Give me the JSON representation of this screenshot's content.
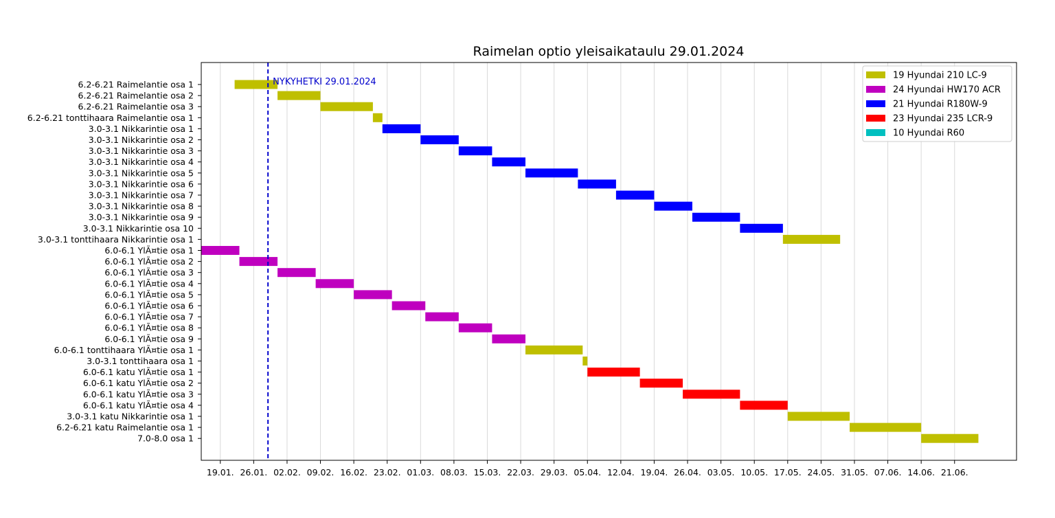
{
  "chart_data": {
    "type": "gantt",
    "title": "Raimelan optio yleisaikataulu 29.01.2024",
    "x_axis": {
      "type": "date",
      "xlim": [
        "2024-01-15",
        "2024-07-04"
      ],
      "tick_dates": [
        "2024-01-19",
        "2024-01-26",
        "2024-02-02",
        "2024-02-09",
        "2024-02-16",
        "2024-02-23",
        "2024-03-01",
        "2024-03-08",
        "2024-03-15",
        "2024-03-22",
        "2024-03-29",
        "2024-04-05",
        "2024-04-12",
        "2024-04-19",
        "2024-04-26",
        "2024-05-03",
        "2024-05-10",
        "2024-05-17",
        "2024-05-24",
        "2024-05-31",
        "2024-06-07",
        "2024-06-14",
        "2024-06-21"
      ],
      "tick_labels": [
        "19.01.",
        "26.01.",
        "02.02.",
        "09.02.",
        "16.02.",
        "23.02.",
        "01.03.",
        "08.03.",
        "15.03.",
        "22.03.",
        "29.03.",
        "05.04.",
        "12.04.",
        "19.04.",
        "26.04.",
        "03.05.",
        "10.05.",
        "17.05.",
        "24.05.",
        "31.05.",
        "07.06.",
        "14.06.",
        "21.06."
      ],
      "grid": true
    },
    "marker": {
      "date": "2024-01-29",
      "label": "NYKYHETKI 29.01.2024",
      "color": "#0000cc",
      "style": "dashed"
    },
    "legend": {
      "position": "top-right",
      "items": [
        {
          "name": "19 Hyundai 210 LC-9",
          "color": "#bfbf00"
        },
        {
          "name": "24 Hyundai HW170 ACR",
          "color": "#bf00bf"
        },
        {
          "name": "21 Hyundai R180W-9",
          "color": "#0000ff"
        },
        {
          "name": "23 Hyundai 235 LCR-9",
          "color": "#ff0000"
        },
        {
          "name": "10 Hyundai R60",
          "color": "#00bfbf"
        }
      ]
    },
    "tasks": [
      {
        "label": "6.2-6.21 Raimelantie osa 1",
        "start": "2024-01-22",
        "end": "2024-01-31",
        "machine": "19 Hyundai 210 LC-9"
      },
      {
        "label": "6.2-6.21 Raimelantie osa 2",
        "start": "2024-01-31",
        "end": "2024-02-09",
        "machine": "19 Hyundai 210 LC-9"
      },
      {
        "label": "6.2-6.21 Raimelantie osa 3",
        "start": "2024-02-09",
        "end": "2024-02-20",
        "machine": "19 Hyundai 210 LC-9"
      },
      {
        "label": "6.2-6.21 tonttihaara Raimelantie osa 1",
        "start": "2024-02-20",
        "end": "2024-02-22",
        "machine": "19 Hyundai 210 LC-9"
      },
      {
        "label": "3.0-3.1 Nikkarintie osa 1",
        "start": "2024-02-22",
        "end": "2024-03-01",
        "machine": "21 Hyundai R180W-9"
      },
      {
        "label": "3.0-3.1 Nikkarintie osa 2",
        "start": "2024-03-01",
        "end": "2024-03-09",
        "machine": "21 Hyundai R180W-9"
      },
      {
        "label": "3.0-3.1 Nikkarintie osa 3",
        "start": "2024-03-09",
        "end": "2024-03-16",
        "machine": "21 Hyundai R180W-9"
      },
      {
        "label": "3.0-3.1 Nikkarintie osa 4",
        "start": "2024-03-16",
        "end": "2024-03-23",
        "machine": "21 Hyundai R180W-9"
      },
      {
        "label": "3.0-3.1 Nikkarintie osa 5",
        "start": "2024-03-23",
        "end": "2024-04-03",
        "machine": "21 Hyundai R180W-9"
      },
      {
        "label": "3.0-3.1 Nikkarintie osa 6",
        "start": "2024-04-03",
        "end": "2024-04-11",
        "machine": "21 Hyundai R180W-9"
      },
      {
        "label": "3.0-3.1 Nikkarintie osa 7",
        "start": "2024-04-11",
        "end": "2024-04-19",
        "machine": "21 Hyundai R180W-9"
      },
      {
        "label": "3.0-3.1 Nikkarintie osa 8",
        "start": "2024-04-19",
        "end": "2024-04-27",
        "machine": "21 Hyundai R180W-9"
      },
      {
        "label": "3.0-3.1 Nikkarintie osa 9",
        "start": "2024-04-27",
        "end": "2024-05-07",
        "machine": "21 Hyundai R180W-9"
      },
      {
        "label": "3.0-3.1 Nikkarintie osa 10",
        "start": "2024-05-07",
        "end": "2024-05-16",
        "machine": "21 Hyundai R180W-9"
      },
      {
        "label": "3.0-3.1 tonttihaara Nikkarintie osa 1",
        "start": "2024-05-16",
        "end": "2024-05-28",
        "machine": "19 Hyundai 210 LC-9"
      },
      {
        "label": "6.0-6.1 YlÃ¤tie osa 1",
        "start": "2024-01-15",
        "end": "2024-01-23",
        "machine": "24 Hyundai HW170 ACR"
      },
      {
        "label": "6.0-6.1 YlÃ¤tie osa 2",
        "start": "2024-01-23",
        "end": "2024-01-31",
        "machine": "24 Hyundai HW170 ACR"
      },
      {
        "label": "6.0-6.1 YlÃ¤tie osa 3",
        "start": "2024-01-31",
        "end": "2024-02-08",
        "machine": "24 Hyundai HW170 ACR"
      },
      {
        "label": "6.0-6.1 YlÃ¤tie osa 4",
        "start": "2024-02-08",
        "end": "2024-02-16",
        "machine": "24 Hyundai HW170 ACR"
      },
      {
        "label": "6.0-6.1 YlÃ¤tie osa 5",
        "start": "2024-02-16",
        "end": "2024-02-24",
        "machine": "24 Hyundai HW170 ACR"
      },
      {
        "label": "6.0-6.1 YlÃ¤tie osa 6",
        "start": "2024-02-24",
        "end": "2024-03-02",
        "machine": "24 Hyundai HW170 ACR"
      },
      {
        "label": "6.0-6.1 YlÃ¤tie osa 7",
        "start": "2024-03-02",
        "end": "2024-03-09",
        "machine": "24 Hyundai HW170 ACR"
      },
      {
        "label": "6.0-6.1 YlÃ¤tie osa 8",
        "start": "2024-03-09",
        "end": "2024-03-16",
        "machine": "24 Hyundai HW170 ACR"
      },
      {
        "label": "6.0-6.1 YlÃ¤tie osa 9",
        "start": "2024-03-16",
        "end": "2024-03-23",
        "machine": "24 Hyundai HW170 ACR"
      },
      {
        "label": "6.0-6.1 tonttihaara YlÃ¤tie osa 1",
        "start": "2024-03-23",
        "end": "2024-04-04",
        "machine": "19 Hyundai 210 LC-9"
      },
      {
        "label": "3.0-3.1 tonttihaara osa 1",
        "start": "2024-04-04",
        "end": "2024-04-05",
        "machine": "19 Hyundai 210 LC-9"
      },
      {
        "label": "6.0-6.1 katu YlÃ¤tie osa 1",
        "start": "2024-04-05",
        "end": "2024-04-16",
        "machine": "23 Hyundai 235 LCR-9"
      },
      {
        "label": "6.0-6.1 katu YlÃ¤tie osa 2",
        "start": "2024-04-16",
        "end": "2024-04-25",
        "machine": "23 Hyundai 235 LCR-9"
      },
      {
        "label": "6.0-6.1 katu YlÃ¤tie osa 3",
        "start": "2024-04-25",
        "end": "2024-05-07",
        "machine": "23 Hyundai 235 LCR-9"
      },
      {
        "label": "6.0-6.1 katu YlÃ¤tie osa 4",
        "start": "2024-05-07",
        "end": "2024-05-17",
        "machine": "23 Hyundai 235 LCR-9"
      },
      {
        "label": "3.0-3.1 katu Nikkarintie osa 1",
        "start": "2024-05-17",
        "end": "2024-05-30",
        "machine": "19 Hyundai 210 LC-9"
      },
      {
        "label": "6.2-6.21 katu Raimelantie osa 1",
        "start": "2024-05-30",
        "end": "2024-06-14",
        "machine": "19 Hyundai 210 LC-9"
      },
      {
        "label": "7.0-8.0 osa 1",
        "start": "2024-06-14",
        "end": "2024-06-26",
        "machine": "19 Hyundai 210 LC-9"
      }
    ]
  }
}
